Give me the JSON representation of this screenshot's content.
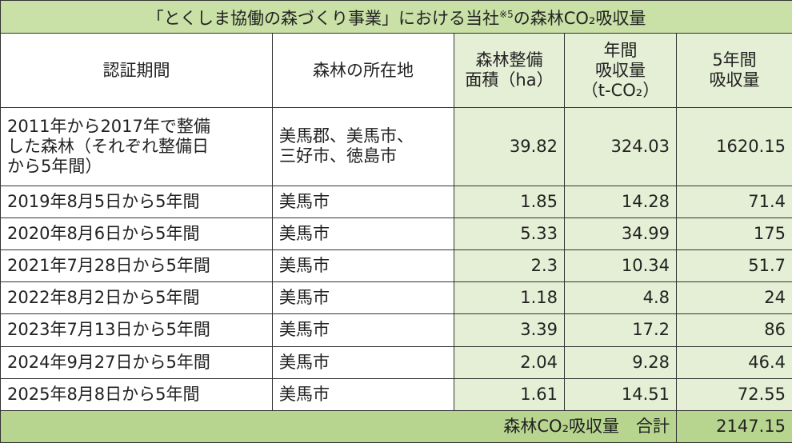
{
  "title": [
    "「とくしま協働の森づくり事業」における当社",
    "※5",
    "の森林CO₂吸収量"
  ],
  "table": {
    "header": [
      [
        "認証期間"
      ],
      [
        "森林の所在地"
      ],
      [
        "森林整備",
        "面積（ha）"
      ],
      [
        "年間",
        "吸収量",
        "（t-CO₂）"
      ],
      [
        "5年間",
        "吸収量"
      ]
    ],
    "rows": [
      [
        [
          "2011年から2017年で整備",
          "した森林（それぞれ整備日",
          "から5年間）"
        ],
        [
          "美馬郡、美馬市、",
          "三好市、徳島市"
        ],
        "39.82",
        "324.03",
        "1620.15"
      ],
      [
        [
          "2019年8月5日から5年間"
        ],
        [
          "美馬市"
        ],
        "1.85",
        "14.28",
        "71.4"
      ],
      [
        [
          "2020年8月6日から5年間"
        ],
        [
          "美馬市"
        ],
        "5.33",
        "34.99",
        "175"
      ],
      [
        [
          "2021年7月28日から5年間"
        ],
        [
          "美馬市"
        ],
        "2.3",
        "10.34",
        "51.7"
      ],
      [
        [
          "2022年8月2日から5年間"
        ],
        [
          "美馬市"
        ],
        "1.18",
        "4.8",
        "24"
      ],
      [
        [
          "2023年7月13日から5年間"
        ],
        [
          "美馬市"
        ],
        "3.39",
        "17.2",
        "86"
      ],
      [
        [
          "2024年9月27日から5年間"
        ],
        [
          "美馬市"
        ],
        "2.04",
        "9.28",
        "46.4"
      ],
      [
        [
          "2025年8月8日から5年間"
        ],
        [
          "美馬市"
        ],
        "1.61",
        "14.51",
        "72.55"
      ]
    ],
    "total": {
      "label": "森林CO₂吸収量　合計",
      "value": "2147.15"
    }
  }
}
